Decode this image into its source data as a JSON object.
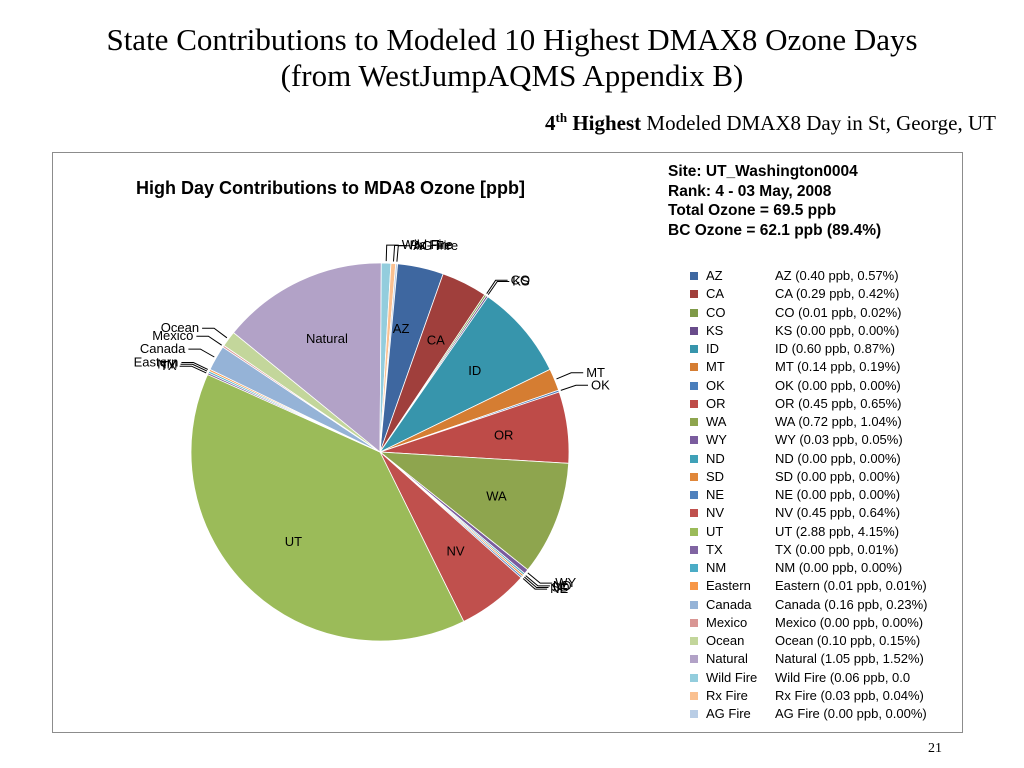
{
  "slide": {
    "title_line1": "State Contributions to Modeled 10 Highest DMAX8 Ozone Days",
    "title_line2": "(from WestJumpAQMS Appendix B)",
    "subtitle_rank": "4",
    "subtitle_sup": "th",
    "subtitle_bold": "Highest",
    "subtitle_rest": "Modeled DMAX8 Day in St, George, UT",
    "page_number": "21"
  },
  "site_info": {
    "site": "Site: UT_Washington0004",
    "rank": "Rank: 4 - 03 May, 2008",
    "total": "Total Ozone = 69.5 ppb",
    "bc": "BC Ozone = 62.1 ppb (89.4%)"
  },
  "chart_data": {
    "type": "pie",
    "title": "High Day Contributions to MDA8 Ozone [ppb]",
    "legend_position": "right",
    "slices": [
      {
        "label": "AZ",
        "value": 0.4,
        "percent": 0.57,
        "legend_text": "AZ (0.40 ppb, 0.57%)",
        "color": "#3E67A0"
      },
      {
        "label": "CA",
        "value": 0.29,
        "percent": 0.42,
        "legend_text": "CA (0.29 ppb, 0.42%)",
        "color": "#A03F3C"
      },
      {
        "label": "CO",
        "value": 0.01,
        "percent": 0.02,
        "legend_text": "CO (0.01 ppb, 0.02%)",
        "color": "#7F9A48"
      },
      {
        "label": "KS",
        "value": 0.0,
        "percent": 0.0,
        "legend_text": "KS (0.00 ppb, 0.00%)",
        "color": "#684B8A"
      },
      {
        "label": "ID",
        "value": 0.6,
        "percent": 0.87,
        "legend_text": "ID (0.60 ppb, 0.87%)",
        "color": "#3795AC"
      },
      {
        "label": "MT",
        "value": 0.14,
        "percent": 0.19,
        "legend_text": "MT (0.14 ppb, 0.19%)",
        "color": "#D57D32"
      },
      {
        "label": "OK",
        "value": 0.0,
        "percent": 0.0,
        "legend_text": "OK (0.00 ppb, 0.00%)",
        "color": "#4A7EBB"
      },
      {
        "label": "OR",
        "value": 0.45,
        "percent": 0.65,
        "legend_text": "OR (0.45 ppb, 0.65%)",
        "color": "#BE4B48"
      },
      {
        "label": "WA",
        "value": 0.72,
        "percent": 1.04,
        "legend_text": "WA (0.72 ppb, 1.04%)",
        "color": "#8EA54E"
      },
      {
        "label": "WY",
        "value": 0.03,
        "percent": 0.05,
        "legend_text": "WY (0.03 ppb, 0.05%)",
        "color": "#7A5C9E"
      },
      {
        "label": "ND",
        "value": 0.0,
        "percent": 0.0,
        "legend_text": "ND (0.00 ppb, 0.00%)",
        "color": "#3FA1B8"
      },
      {
        "label": "SD",
        "value": 0.0,
        "percent": 0.0,
        "legend_text": "SD (0.00 ppb, 0.00%)",
        "color": "#E0873A"
      },
      {
        "label": "NE",
        "value": 0.0,
        "percent": 0.0,
        "legend_text": "NE (0.00 ppb, 0.00%)",
        "color": "#4F81BD"
      },
      {
        "label": "NV",
        "value": 0.45,
        "percent": 0.64,
        "legend_text": "NV (0.45 ppb, 0.64%)",
        "color": "#C0504D"
      },
      {
        "label": "UT",
        "value": 2.88,
        "percent": 4.15,
        "legend_text": "UT (2.88 ppb, 4.15%)",
        "color": "#9BBB59"
      },
      {
        "label": "TX",
        "value": 0.0,
        "percent": 0.01,
        "legend_text": "TX (0.00 ppb, 0.01%)",
        "color": "#8064A2"
      },
      {
        "label": "NM",
        "value": 0.0,
        "percent": 0.0,
        "legend_text": "NM (0.00 ppb, 0.00%)",
        "color": "#4BACC6"
      },
      {
        "label": "Eastern",
        "value": 0.01,
        "percent": 0.01,
        "legend_text": "Eastern (0.01 ppb, 0.01%)",
        "color": "#F79646"
      },
      {
        "label": "Canada",
        "value": 0.16,
        "percent": 0.23,
        "legend_text": "Canada (0.16 ppb, 0.23%)",
        "color": "#95B3D7"
      },
      {
        "label": "Mexico",
        "value": 0.0,
        "percent": 0.0,
        "legend_text": "Mexico (0.00 ppb, 0.00%)",
        "color": "#D99694"
      },
      {
        "label": "Ocean",
        "value": 0.1,
        "percent": 0.15,
        "legend_text": "Ocean (0.10 ppb, 0.15%)",
        "color": "#C3D69B"
      },
      {
        "label": "Natural",
        "value": 1.05,
        "percent": 1.52,
        "legend_text": "Natural (1.05 ppb, 1.52%)",
        "color": "#B2A2C7"
      },
      {
        "label": "Wild Fire",
        "value": 0.06,
        "percent": null,
        "legend_text": "Wild Fire (0.06 ppb, 0.0",
        "color": "#93CDDD"
      },
      {
        "label": "Rx Fire",
        "value": 0.03,
        "percent": 0.04,
        "legend_text": "Rx Fire (0.03 ppb, 0.04%)",
        "color": "#FAC090"
      },
      {
        "label": "AG Fire",
        "value": 0.0,
        "percent": 0.0,
        "legend_text": "AG Fire (0.00 ppb, 0.00%)",
        "color": "#B9CDE5"
      }
    ]
  }
}
